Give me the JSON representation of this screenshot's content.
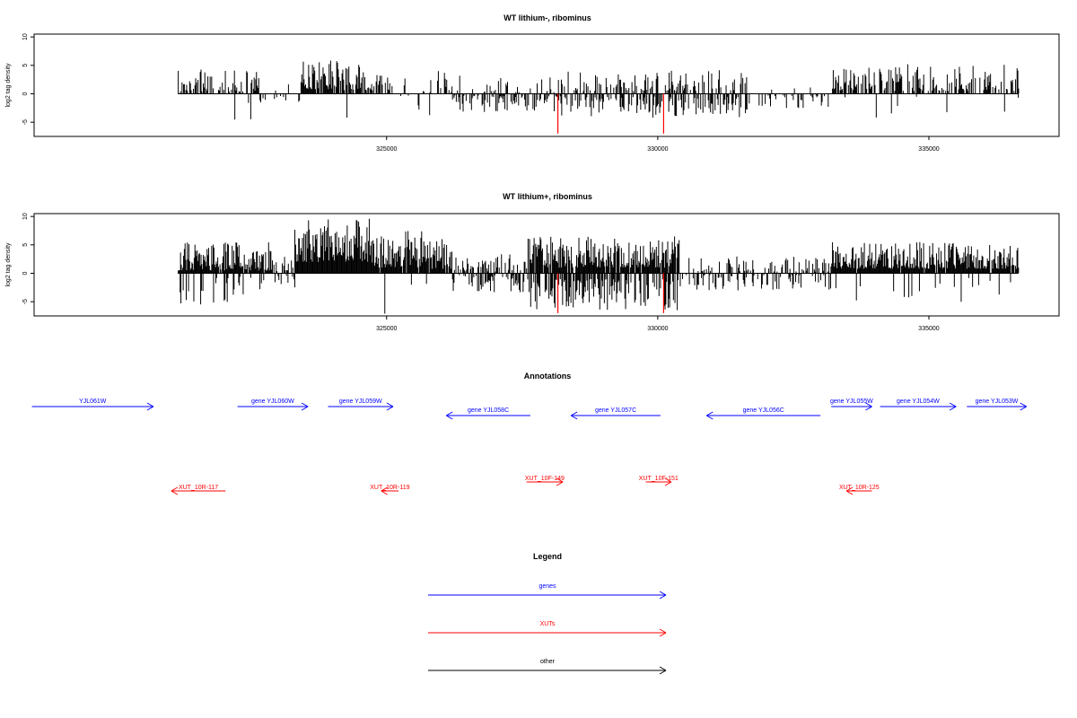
{
  "chart_data": [
    {
      "type": "bar",
      "title": "WT lithium-, ribominus",
      "ylabel": "log2 tag density",
      "xlim": [
        318500,
        337400
      ],
      "ylim": [
        -7.5,
        10.5
      ],
      "yticks": [
        -5,
        0,
        5,
        10
      ],
      "yticklabels": [
        "-5",
        "0",
        "5",
        "10"
      ],
      "xticks": [
        325000,
        330000,
        335000
      ],
      "xticklabels": [
        "325000",
        "330000",
        "335000"
      ],
      "track_range": [
        321150,
        336650
      ],
      "seed": 7,
      "segments": [
        {
          "from": 321150,
          "to": 322650,
          "lo": 0.4,
          "hi": 4.6,
          "prob": 0.5,
          "neg": 0.04
        },
        {
          "from": 322650,
          "to": 323400,
          "lo": 0.3,
          "hi": 2.0,
          "prob": 0.06,
          "neg": 0.3
        },
        {
          "from": 323400,
          "to": 324100,
          "lo": 0.8,
          "hi": 6.0,
          "prob": 0.85,
          "neg": 0.03
        },
        {
          "from": 324100,
          "to": 325050,
          "lo": 0.6,
          "hi": 5.3,
          "prob": 0.6,
          "neg": 0.05
        },
        {
          "from": 325050,
          "to": 326200,
          "lo": 0.3,
          "hi": 4.0,
          "prob": 0.22,
          "neg": 0.1
        },
        {
          "from": 326200,
          "to": 328200,
          "lo": 0.3,
          "hi": 3.2,
          "prob": 0.18,
          "neg": 0.8
        },
        {
          "from": 328200,
          "to": 331700,
          "lo": 0.5,
          "hi": 4.2,
          "prob": 0.32,
          "neg": 0.8
        },
        {
          "from": 331700,
          "to": 333200,
          "lo": 0.3,
          "hi": 2.5,
          "prob": 0.03,
          "neg": 0.5
        },
        {
          "from": 333200,
          "to": 334000,
          "lo": 0.6,
          "hi": 4.6,
          "prob": 0.65,
          "neg": 0.04
        },
        {
          "from": 334000,
          "to": 336650,
          "lo": 0.5,
          "hi": 5.2,
          "prob": 0.5,
          "neg": 0.06
        }
      ],
      "highlights": [
        {
          "x": 328150,
          "from": 0,
          "to": -7.0,
          "color": "#ff0000"
        },
        {
          "x": 330100,
          "from": 0,
          "to": -7.0,
          "color": "#ff0000"
        }
      ]
    },
    {
      "type": "bar",
      "title": "WT lithium+, ribominus",
      "ylabel": "log2 tag density",
      "xlim": [
        318500,
        337400
      ],
      "ylim": [
        -7.5,
        10.5
      ],
      "yticks": [
        -5,
        0,
        5,
        10
      ],
      "yticklabels": [
        "-5",
        "0",
        "5",
        "10"
      ],
      "xticks": [
        325000,
        330000,
        335000
      ],
      "xticklabels": [
        "325000",
        "330000",
        "335000"
      ],
      "track_range": [
        321150,
        336650
      ],
      "seed": 19,
      "segments": [
        {
          "from": 321150,
          "to": 322900,
          "lo": 0.5,
          "hi": 5.5,
          "prob": 0.92,
          "neg": 0.3
        },
        {
          "from": 322900,
          "to": 323300,
          "lo": 0.3,
          "hi": 3.0,
          "prob": 0.25,
          "neg": 0.4
        },
        {
          "from": 323300,
          "to": 324700,
          "lo": 2.0,
          "hi": 9.8,
          "prob": 1.0,
          "neg": 0.02
        },
        {
          "from": 324700,
          "to": 325650,
          "lo": 1.0,
          "hi": 7.5,
          "prob": 0.95,
          "neg": 0.1
        },
        {
          "from": 325650,
          "to": 326200,
          "lo": 0.8,
          "hi": 6.0,
          "prob": 0.9,
          "neg": 0.1
        },
        {
          "from": 326200,
          "to": 327600,
          "lo": 0.3,
          "hi": 3.5,
          "prob": 0.45,
          "neg": 0.85
        },
        {
          "from": 327600,
          "to": 330400,
          "lo": 1.0,
          "hi": 6.5,
          "prob": 0.92,
          "neg": 0.93
        },
        {
          "from": 330400,
          "to": 333200,
          "lo": 0.3,
          "hi": 3.0,
          "prob": 0.35,
          "neg": 0.6
        },
        {
          "from": 333200,
          "to": 336650,
          "lo": 0.8,
          "hi": 5.5,
          "prob": 0.95,
          "neg": 0.12
        }
      ],
      "highlights": [
        {
          "x": 328150,
          "from": 0,
          "to": -7.0,
          "color": "#ff0000"
        },
        {
          "x": 330100,
          "from": 0,
          "to": -7.0,
          "color": "#ff0000"
        }
      ]
    }
  ],
  "annotations": {
    "title": "Annotations",
    "genes": [
      {
        "label": "YJL061W",
        "start": 318460,
        "end": 320700,
        "dir": "+"
      },
      {
        "label": "gene YJL060W",
        "start": 322250,
        "end": 323550,
        "dir": "+"
      },
      {
        "label": "gene YJL059W",
        "start": 323920,
        "end": 325120,
        "dir": "+"
      },
      {
        "label": "gene YJL058C",
        "start": 327650,
        "end": 326100,
        "dir": "-"
      },
      {
        "label": "gene YJL057C",
        "start": 330050,
        "end": 328400,
        "dir": "-"
      },
      {
        "label": "gene YJL056C",
        "start": 333000,
        "end": 330900,
        "dir": "-"
      },
      {
        "label": "gene YJL055W",
        "start": 333200,
        "end": 333950,
        "dir": "+"
      },
      {
        "label": "gene YJL054W",
        "start": 334100,
        "end": 335500,
        "dir": "+"
      },
      {
        "label": "gene YJL053W",
        "start": 335700,
        "end": 336800,
        "dir": "+"
      }
    ],
    "xuts": [
      {
        "label": "XUT_10R-117",
        "start": 322030,
        "end": 321030,
        "dir": "-"
      },
      {
        "label": "XUT_10R-119",
        "start": 325220,
        "end": 324900,
        "dir": "-"
      },
      {
        "label": "XUT_10F-149",
        "start": 327580,
        "end": 328250,
        "dir": "+"
      },
      {
        "label": "XUT_10F-151",
        "start": 329780,
        "end": 330250,
        "dir": "+"
      },
      {
        "label": "XUT_10R-125",
        "start": 333950,
        "end": 333480,
        "dir": "-"
      }
    ]
  },
  "legend": {
    "title": "Legend",
    "items": [
      {
        "label": "genes",
        "color": "#0000ff"
      },
      {
        "label": "XUTs",
        "color": "#ff0000"
      },
      {
        "label": "other",
        "color": "#000000"
      }
    ]
  },
  "colors": {
    "gene": "#0000ff",
    "xut": "#ff0000",
    "other": "#000000",
    "bar": "#000000"
  }
}
